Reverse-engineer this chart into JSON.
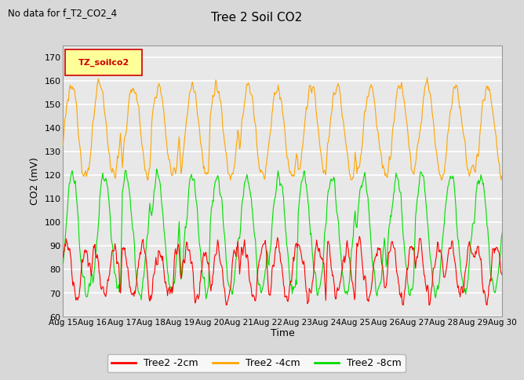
{
  "title": "Tree 2 Soil CO2",
  "suptitle": "No data for f_T2_CO2_4",
  "ylabel": "CO2 (mV)",
  "xlabel": "Time",
  "legend_label": "TZ_soilco2",
  "ylim": [
    60,
    175
  ],
  "yticks": [
    60,
    70,
    80,
    90,
    100,
    110,
    120,
    130,
    140,
    150,
    160,
    170
  ],
  "series": [
    {
      "label": "Tree2 -2cm",
      "color": "#ff0000"
    },
    {
      "label": "Tree2 -4cm",
      "color": "#ffa500"
    },
    {
      "label": "Tree2 -8cm",
      "color": "#00dd00"
    }
  ],
  "xtick_labels": [
    "Aug 15",
    "Aug 16",
    "Aug 17",
    "Aug 18",
    "Aug 19",
    "Aug 20",
    "Aug 21",
    "Aug 22",
    "Aug 23",
    "Aug 24",
    "Aug 25",
    "Aug 26",
    "Aug 27",
    "Aug 28",
    "Aug 29",
    "Aug 30"
  ],
  "bg_color": "#d8d8d8",
  "plot_bg_color": "#e8e8e8",
  "grid_color": "#ffffff",
  "n_days": 15,
  "points_per_day": 48
}
